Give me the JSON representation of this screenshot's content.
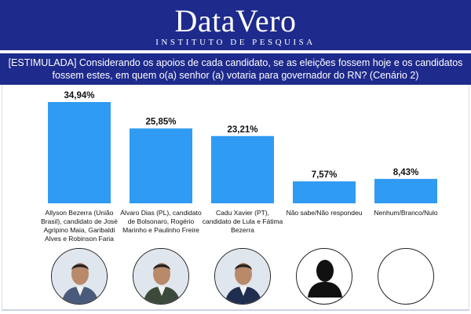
{
  "header": {
    "brand": "DataVero",
    "subtitle": "INSTITUTO DE PESQUISA"
  },
  "question": "[ESTIMULADA] Considerando os apoios de cada candidato, se as eleições fossem hoje e os candidatos fossem estes, em quem o(a) senhor (a) votaria para governador do RN? (Cenário 2)",
  "colors": {
    "bar": "#2f9bf2",
    "header": "#1e2a8c"
  },
  "chart_data": {
    "type": "bar",
    "categories": [
      "Allyson Bezerra (União Brasil), candidato de José Agripino Maia, Garibaldi Alves e Robinson Faria",
      "Álvaro Dias (PL), candidato de Bolsonaro, Rogério Marinho e Paulinho Freire",
      "Cadu Xavier (PT), candidato de Lula e Fátima Bezerra",
      "Não sabe/Não respondeu",
      "Nenhum/Branco/Nulo"
    ],
    "values": [
      34.94,
      25.85,
      23.21,
      7.57,
      8.43
    ],
    "value_labels": [
      "34,94%",
      "25,85%",
      "23,21%",
      "7,57%",
      "8,43%"
    ],
    "ylim": [
      0,
      40
    ],
    "grid": false,
    "legend": "none"
  },
  "avatars": [
    {
      "icon": "candidate-photo-icon"
    },
    {
      "icon": "candidate-photo-icon"
    },
    {
      "icon": "candidate-photo-icon"
    },
    {
      "icon": "person-silhouette-icon"
    },
    {
      "icon": "empty-circle-icon"
    }
  ]
}
